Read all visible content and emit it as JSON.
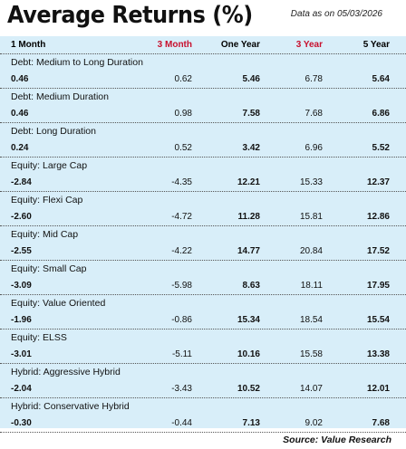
{
  "title": "Average Returns (%)",
  "as_of": "Data as on 05/03/2026",
  "columns": [
    "1 Month",
    "3 Month",
    "One Year",
    "3 Year",
    "5 Year"
  ],
  "rows": [
    {
      "category": "Debt: Medium to Long Duration",
      "values": [
        "0.46",
        "0.62",
        "5.46",
        "6.78",
        "5.64"
      ]
    },
    {
      "category": "Debt: Medium Duration",
      "values": [
        "0.46",
        "0.98",
        "7.58",
        "7.68",
        "6.86"
      ]
    },
    {
      "category": "Debt: Long Duration",
      "values": [
        "0.24",
        "0.52",
        "3.42",
        "6.96",
        "5.52"
      ]
    },
    {
      "category": "Equity: Large Cap",
      "values": [
        "-2.84",
        "-4.35",
        "12.21",
        "15.33",
        "12.37"
      ]
    },
    {
      "category": "Equity: Flexi Cap",
      "values": [
        "-2.60",
        "-4.72",
        "11.28",
        "15.81",
        "12.86"
      ]
    },
    {
      "category": "Equity: Mid Cap",
      "values": [
        "-2.55",
        "-4.22",
        "14.77",
        "20.84",
        "17.52"
      ]
    },
    {
      "category": "Equity: Small Cap",
      "values": [
        "-3.09",
        "-5.98",
        "8.63",
        "18.11",
        "17.95"
      ]
    },
    {
      "category": "Equity: Value Oriented",
      "values": [
        "-1.96",
        "-0.86",
        "15.34",
        "18.54",
        "15.54"
      ]
    },
    {
      "category": "Equity: ELSS",
      "values": [
        "-3.01",
        "-5.11",
        "10.16",
        "15.58",
        "13.38"
      ]
    },
    {
      "category": "Hybrid: Aggressive Hybrid",
      "values": [
        "-2.04",
        "-3.43",
        "10.52",
        "14.07",
        "12.01"
      ]
    },
    {
      "category": "Hybrid: Conservative Hybrid",
      "values": [
        "-0.30",
        "-0.44",
        "7.13",
        "9.02",
        "7.68"
      ]
    }
  ],
  "source": "Source: Value Research",
  "colors": {
    "background": "#d8eef9",
    "accent_red": "#c8102e"
  }
}
